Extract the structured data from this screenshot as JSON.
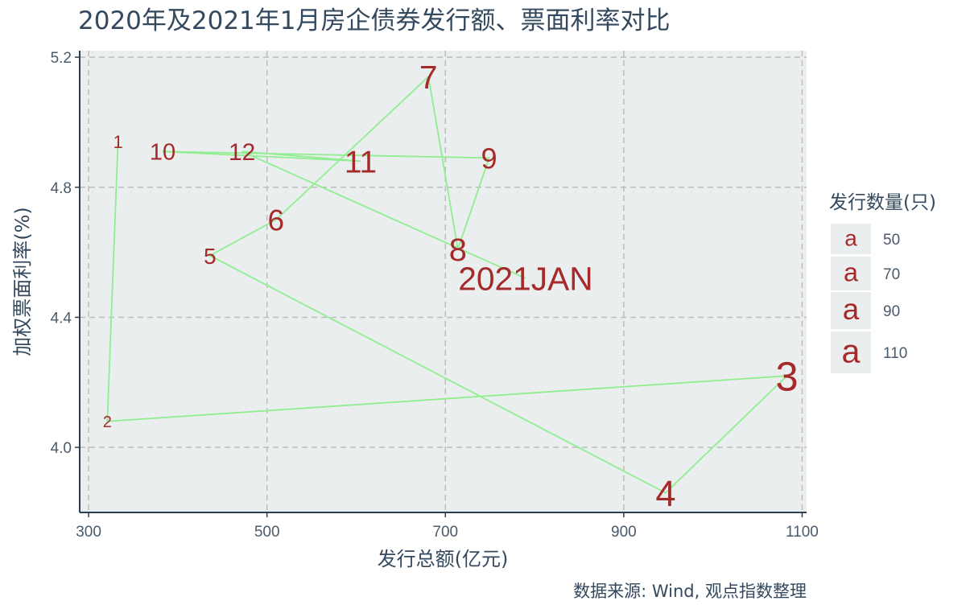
{
  "chart_data": {
    "type": "scatter",
    "title": "2020年及2021年1月房企债券发行额、票面利率对比",
    "xlabel": "发行总额(亿元)",
    "ylabel": "加权票面利率(%)",
    "caption": "数据来源: Wind, 观点指数整理",
    "xlim": [
      290,
      1105
    ],
    "ylim": [
      3.8,
      5.22
    ],
    "x_ticks": [
      300,
      500,
      700,
      900,
      1100
    ],
    "y_ticks": [
      4.0,
      4.4,
      4.8,
      5.2
    ],
    "x_tick_labels": [
      "300",
      "500",
      "700",
      "900",
      "1100"
    ],
    "y_tick_labels": [
      "4.0",
      "4.4",
      "4.8",
      "5.2"
    ],
    "grid": true,
    "line_color": "#90ee90",
    "label_color": "#a52a2a",
    "panel_background": "#ebeeef",
    "points": [
      {
        "label": "1",
        "x": 333,
        "y": 4.94,
        "size": 48
      },
      {
        "label": "2",
        "x": 321,
        "y": 4.08,
        "size": 44
      },
      {
        "label": "3",
        "x": 1083,
        "y": 4.22,
        "size": 112
      },
      {
        "label": "4",
        "x": 947,
        "y": 3.86,
        "size": 100
      },
      {
        "label": "5",
        "x": 436,
        "y": 4.59,
        "size": 62
      },
      {
        "label": "6",
        "x": 510,
        "y": 4.7,
        "size": 82
      },
      {
        "label": "7",
        "x": 681,
        "y": 5.14,
        "size": 90
      },
      {
        "label": "8",
        "x": 714,
        "y": 4.61,
        "size": 88
      },
      {
        "label": "9",
        "x": 749,
        "y": 4.89,
        "size": 80
      },
      {
        "label": "10",
        "x": 383,
        "y": 4.91,
        "size": 64
      },
      {
        "label": "11",
        "x": 605,
        "y": 4.88,
        "size": 86
      },
      {
        "label": "12",
        "x": 472,
        "y": 4.91,
        "size": 66
      },
      {
        "label": "2021JAN",
        "x": 790,
        "y": 4.52,
        "size": 90
      }
    ],
    "legend": {
      "title": "发行数量(只)",
      "position": "right",
      "items": [
        {
          "symbol": "a",
          "label": "50",
          "size": 50
        },
        {
          "symbol": "a",
          "label": "70",
          "size": 70
        },
        {
          "symbol": "a",
          "label": "90",
          "size": 90
        },
        {
          "symbol": "a",
          "label": "110",
          "size": 110
        }
      ]
    }
  }
}
